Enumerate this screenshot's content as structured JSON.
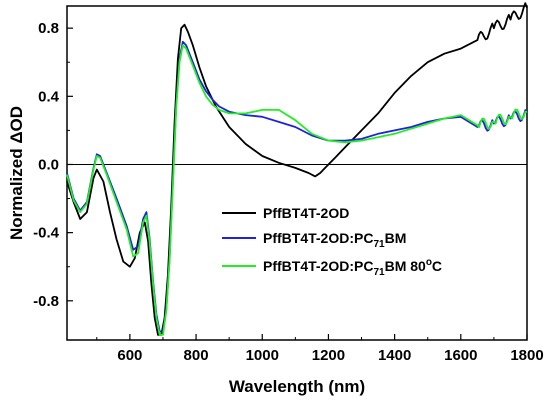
{
  "chart_data": {
    "type": "line",
    "xlabel": "Wavelength (nm)",
    "ylabel": "Normalized ΔOD",
    "xlim": [
      410,
      1800
    ],
    "ylim": [
      -1.03,
      0.93
    ],
    "x_ticks": [
      600,
      800,
      1000,
      1200,
      1400,
      1600,
      1800
    ],
    "x_tick_labels": [
      "600",
      "800",
      "1000",
      "1200",
      "1400",
      "1600",
      "1800"
    ],
    "y_ticks": [
      -0.8,
      -0.4,
      0.0,
      0.4,
      0.8
    ],
    "y_tick_labels": [
      "-0.8",
      "-0.4",
      "0.0",
      "0.4",
      "0.8"
    ],
    "zero_line": true,
    "grid": false,
    "legend_position": "lower-center",
    "series": [
      {
        "name": "PffBT4T-2OD",
        "legend": {
          "main": "PffBT4T-2OD",
          "subscript": "",
          "tail": ""
        },
        "color": "#000000",
        "noise_from": 1650,
        "x": [
          410,
          430,
          450,
          470,
          490,
          500,
          520,
          540,
          560,
          580,
          600,
          615,
          630,
          645,
          655,
          665,
          675,
          685,
          695,
          705,
          715,
          725,
          735,
          745,
          755,
          765,
          775,
          790,
          810,
          830,
          860,
          900,
          950,
          1000,
          1050,
          1100,
          1140,
          1160,
          1175,
          1190,
          1200,
          1220,
          1250,
          1300,
          1350,
          1400,
          1450,
          1500,
          1550,
          1600,
          1650,
          1700,
          1750,
          1800
        ],
        "y": [
          -0.1,
          -0.22,
          -0.32,
          -0.28,
          -0.08,
          -0.03,
          -0.1,
          -0.28,
          -0.44,
          -0.57,
          -0.6,
          -0.55,
          -0.4,
          -0.34,
          -0.45,
          -0.7,
          -0.9,
          -1.0,
          -1.0,
          -0.9,
          -0.65,
          -0.25,
          0.25,
          0.62,
          0.8,
          0.82,
          0.78,
          0.7,
          0.57,
          0.46,
          0.34,
          0.22,
          0.12,
          0.05,
          0.01,
          -0.02,
          -0.05,
          -0.07,
          -0.05,
          -0.02,
          0.0,
          0.04,
          0.1,
          0.2,
          0.3,
          0.42,
          0.52,
          0.6,
          0.65,
          0.68,
          0.73,
          0.8,
          0.85,
          0.92
        ]
      },
      {
        "name": "PffBT4T-2OD:PC71BM",
        "legend": {
          "main": "PffBT4T-2OD:PC",
          "subscript": "71",
          "tail": "BM"
        },
        "color": "#2020e0",
        "noise_from": 1650,
        "x": [
          410,
          430,
          450,
          470,
          490,
          500,
          510,
          530,
          560,
          590,
          610,
          625,
          640,
          650,
          660,
          670,
          680,
          690,
          700,
          710,
          720,
          730,
          740,
          750,
          760,
          770,
          790,
          810,
          830,
          850,
          870,
          900,
          950,
          1000,
          1050,
          1100,
          1150,
          1200,
          1250,
          1300,
          1350,
          1400,
          1450,
          1500,
          1550,
          1600,
          1650,
          1700,
          1750,
          1800
        ],
        "y": [
          -0.05,
          -0.2,
          -0.27,
          -0.22,
          -0.02,
          0.06,
          0.05,
          -0.05,
          -0.2,
          -0.36,
          -0.5,
          -0.48,
          -0.32,
          -0.28,
          -0.44,
          -0.68,
          -0.88,
          -0.98,
          -0.98,
          -0.85,
          -0.55,
          -0.1,
          0.35,
          0.62,
          0.72,
          0.7,
          0.6,
          0.5,
          0.43,
          0.38,
          0.34,
          0.31,
          0.29,
          0.28,
          0.25,
          0.22,
          0.17,
          0.14,
          0.14,
          0.15,
          0.18,
          0.2,
          0.22,
          0.25,
          0.27,
          0.28,
          0.22,
          0.24,
          0.27,
          0.3
        ]
      },
      {
        "name": "PffBT4T-2OD:PC71BM 80oC",
        "legend": {
          "main": "PffBT4T-2OD:PC",
          "subscript": "71",
          "tail": "BM 80",
          "superscript": "o",
          "end": "C"
        },
        "color": "#22ee22",
        "noise_from": 1650,
        "x": [
          410,
          430,
          450,
          470,
          490,
          500,
          510,
          530,
          560,
          590,
          610,
          625,
          640,
          650,
          660,
          670,
          680,
          690,
          700,
          710,
          720,
          730,
          740,
          750,
          760,
          770,
          790,
          810,
          830,
          850,
          870,
          900,
          950,
          1000,
          1050,
          1100,
          1150,
          1200,
          1250,
          1300,
          1350,
          1400,
          1450,
          1500,
          1550,
          1600,
          1650,
          1700,
          1750,
          1800
        ],
        "y": [
          -0.06,
          -0.21,
          -0.28,
          -0.23,
          -0.03,
          0.05,
          0.04,
          -0.06,
          -0.22,
          -0.38,
          -0.54,
          -0.52,
          -0.34,
          -0.3,
          -0.46,
          -0.7,
          -0.9,
          -1.0,
          -1.0,
          -0.86,
          -0.56,
          -0.12,
          0.33,
          0.6,
          0.7,
          0.68,
          0.58,
          0.48,
          0.4,
          0.35,
          0.32,
          0.3,
          0.3,
          0.32,
          0.32,
          0.26,
          0.18,
          0.14,
          0.13,
          0.14,
          0.16,
          0.18,
          0.21,
          0.24,
          0.27,
          0.29,
          0.23,
          0.25,
          0.28,
          0.31
        ]
      }
    ]
  }
}
